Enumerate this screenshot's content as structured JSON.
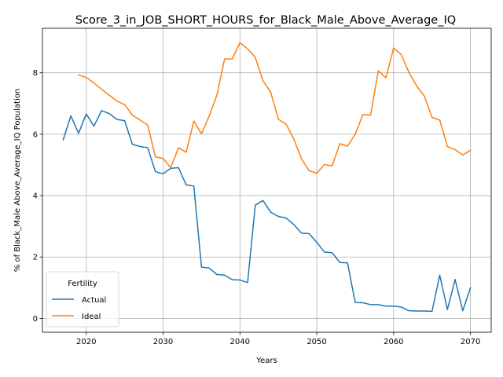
{
  "chart_data": {
    "type": "line",
    "title": "Score_3_in_JOB_SHORT_HOURS_for_Black_Male_Above_Average_IQ",
    "xlabel": "Years",
    "ylabel": "% of Black_Male Above_Average_IQ Population",
    "xlim": [
      2014.3,
      2072.7
    ],
    "ylim": [
      -0.45,
      9.45
    ],
    "xticks": [
      2020,
      2030,
      2040,
      2050,
      2060,
      2070
    ],
    "yticks": [
      0,
      2,
      4,
      6,
      8
    ],
    "grid": true,
    "legend": {
      "title": "Fertility",
      "placement": "lower-left"
    },
    "series": [
      {
        "name": "Actual",
        "color": "#1f77b4",
        "x": [
          2017,
          2018,
          2019,
          2020,
          2021,
          2022,
          2023,
          2024,
          2025,
          2026,
          2027,
          2028,
          2029,
          2030,
          2031,
          2032,
          2033,
          2034,
          2035,
          2036,
          2037,
          2038,
          2039,
          2040,
          2041,
          2042,
          2043,
          2044,
          2045,
          2046,
          2047,
          2048,
          2049,
          2050,
          2051,
          2052,
          2053,
          2054,
          2055,
          2056,
          2057,
          2058,
          2059,
          2060,
          2061,
          2062,
          2063,
          2064,
          2065,
          2066,
          2067,
          2068,
          2069,
          2070
        ],
        "y": [
          5.82,
          6.6,
          6.03,
          6.66,
          6.26,
          6.77,
          6.67,
          6.48,
          6.44,
          5.67,
          5.6,
          5.56,
          4.78,
          4.71,
          4.89,
          4.91,
          4.35,
          4.31,
          1.67,
          1.64,
          1.43,
          1.41,
          1.26,
          1.25,
          1.17,
          3.69,
          3.84,
          3.46,
          3.32,
          3.27,
          3.06,
          2.78,
          2.76,
          2.48,
          2.16,
          2.14,
          1.82,
          1.81,
          0.52,
          0.51,
          0.45,
          0.45,
          0.4,
          0.4,
          0.37,
          0.25,
          0.24,
          0.24,
          0.23,
          1.41,
          0.29,
          1.27,
          0.25,
          1.0
        ]
      },
      {
        "name": "Ideal",
        "color": "#ff7f0e",
        "x": [
          2019,
          2020,
          2021,
          2022,
          2023,
          2024,
          2025,
          2026,
          2027,
          2028,
          2029,
          2030,
          2031,
          2032,
          2033,
          2034,
          2035,
          2036,
          2037,
          2038,
          2039,
          2040,
          2041,
          2042,
          2043,
          2044,
          2045,
          2046,
          2047,
          2048,
          2049,
          2050,
          2051,
          2052,
          2053,
          2054,
          2055,
          2056,
          2057,
          2058,
          2059,
          2060,
          2061,
          2062,
          2063,
          2064,
          2065,
          2066,
          2067,
          2068,
          2069,
          2070
        ],
        "y": [
          7.93,
          7.85,
          7.67,
          7.46,
          7.27,
          7.08,
          6.96,
          6.62,
          6.46,
          6.3,
          5.26,
          5.21,
          4.91,
          5.56,
          5.41,
          6.43,
          6.01,
          6.59,
          7.27,
          8.45,
          8.45,
          8.98,
          8.78,
          8.5,
          7.74,
          7.37,
          6.49,
          6.33,
          5.85,
          5.2,
          4.81,
          4.73,
          5.01,
          4.97,
          5.69,
          5.61,
          6.0,
          6.64,
          6.62,
          8.06,
          7.84,
          8.81,
          8.59,
          8.01,
          7.57,
          7.24,
          6.55,
          6.46,
          5.6,
          5.5,
          5.32,
          5.48
        ]
      }
    ]
  }
}
